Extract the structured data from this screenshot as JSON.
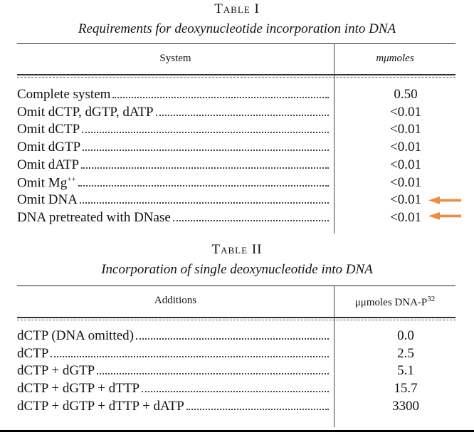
{
  "table_1": {
    "title": "Table I",
    "caption": "Requirements for deoxynucleotide incorporation into DNA",
    "headers": [
      {
        "text": "System"
      },
      {
        "text": "mμmoles"
      }
    ],
    "rows": [
      {
        "label": "Complete system",
        "value": "0.50"
      },
      {
        "label": "Omit dCTP, dGTP, dATP",
        "value": "<0.01"
      },
      {
        "label": "Omit dCTP",
        "value": "<0.01"
      },
      {
        "label": "Omit dGTP",
        "value": "<0.01"
      },
      {
        "label": "Omit dATP",
        "value": "<0.01"
      },
      {
        "label": "Omit Mg",
        "label_sup": "++",
        "value": "<0.01"
      },
      {
        "label": "Omit DNA",
        "value": "<0.01"
      },
      {
        "label": "DNA pretreated with DNase",
        "value": "<0.01"
      }
    ]
  },
  "table_2": {
    "title": "Table II",
    "caption": "Incorporation of single deoxynucleotide into DNA",
    "headers": [
      {
        "text": "Additions"
      },
      {
        "text": "μμmoles DNA-P",
        "sup": "32"
      }
    ],
    "rows": [
      {
        "label": "dCTP (DNA omitted)",
        "value": "0.0"
      },
      {
        "label": "dCTP",
        "value": "2.5"
      },
      {
        "label": "dCTP + dGTP",
        "value": "5.1"
      },
      {
        "label": "dCTP + dGTP + dTTP",
        "value": "15.7"
      },
      {
        "label": "dCTP + dGTP + dTTP + dATP",
        "value": "3300"
      }
    ]
  }
}
